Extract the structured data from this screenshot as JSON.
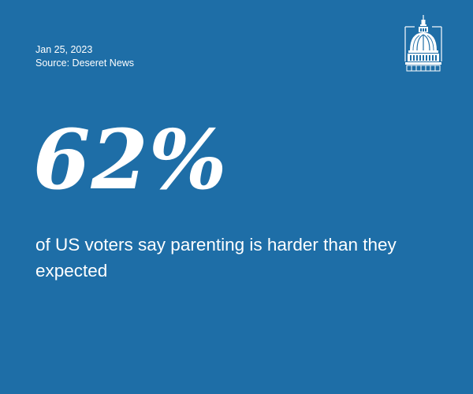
{
  "colors": {
    "background": "#1e6ea7",
    "text": "#ffffff"
  },
  "meta": {
    "date": "Jan 25, 2023",
    "source": "Source: Deseret News"
  },
  "logo": {
    "icon": "capitol-dome-icon"
  },
  "stat": {
    "value": "62%",
    "caption": "of US voters say parenting is harder than they expected"
  }
}
